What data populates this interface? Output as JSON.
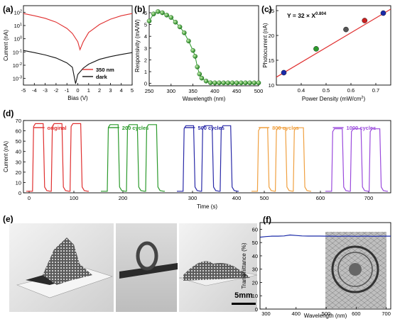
{
  "panels": {
    "a": {
      "label": "(a)"
    },
    "b": {
      "label": "(b)"
    },
    "c": {
      "label": "(c)"
    },
    "d": {
      "label": "(d)"
    },
    "e": {
      "label": "(e)",
      "scale_bar": "5mm"
    },
    "f": {
      "label": "(f)"
    }
  },
  "chart_data": [
    {
      "panel": "a",
      "type": "line",
      "xlabel": "Bias (V)",
      "ylabel": "Current (nA)",
      "log_scale_y": true,
      "xlim": [
        -5,
        5
      ],
      "ylim_exp": [
        -3.5,
        2.5
      ],
      "xticks": [
        "-5",
        "-4",
        "-3",
        "-2",
        "-1",
        "0",
        "1",
        "2",
        "3",
        "4",
        "5"
      ],
      "yticks": [
        "10^2",
        "10^1",
        "10^0",
        "10^-1",
        "10^-2",
        "10^-3"
      ],
      "legend_position": "bottom-right",
      "series": [
        {
          "name": "350 nm",
          "color": "#e03030",
          "x": [
            -5,
            -4,
            -3,
            -2,
            -1,
            -0.5,
            0,
            0.2,
            0.5,
            1,
            2,
            3,
            4,
            5
          ],
          "y": [
            80,
            55,
            35,
            18,
            6,
            2.5,
            0.6,
            0.15,
            0.6,
            3,
            12,
            30,
            55,
            80
          ]
        },
        {
          "name": "dark",
          "color": "#111111",
          "x": [
            -5,
            -4,
            -3,
            -2,
            -1,
            -0.5,
            -0.2,
            0,
            0.5,
            1,
            2,
            3,
            4,
            5
          ],
          "y": [
            0.13,
            0.09,
            0.06,
            0.035,
            0.015,
            0.007,
            0.0004,
            0.002,
            0.006,
            0.012,
            0.028,
            0.045,
            0.065,
            0.09
          ]
        }
      ]
    },
    {
      "panel": "b",
      "type": "line",
      "xlabel": "Wavelength (nm)",
      "ylabel": "Responsivity (mA/W)",
      "xlim": [
        250,
        500
      ],
      "ylim": [
        -0.2,
        6.6
      ],
      "xticks": [
        "250",
        "300",
        "350",
        "400",
        "450",
        "500"
      ],
      "yticks": [
        "0",
        "1",
        "2",
        "3",
        "4",
        "5",
        "6"
      ],
      "series": [
        {
          "name": "",
          "color": "#2c9a2c",
          "x": [
            250,
            260,
            270,
            280,
            290,
            300,
            310,
            320,
            330,
            340,
            350,
            355,
            360,
            365,
            370,
            380,
            390,
            400,
            410,
            420,
            430,
            440,
            450,
            460,
            470,
            480,
            490,
            500
          ],
          "y": [
            5.3,
            5.9,
            6.1,
            6.0,
            5.8,
            5.6,
            5.2,
            4.8,
            4.3,
            3.6,
            2.8,
            2.3,
            1.4,
            0.8,
            0.45,
            0.2,
            0.06,
            0.05,
            0.05,
            0.05,
            0.05,
            0.05,
            0.05,
            0.05,
            0.05,
            0.05,
            0.05,
            0.05
          ]
        }
      ]
    },
    {
      "panel": "c",
      "type": "scatter",
      "xlabel": "Power Density (mW/cm²)",
      "ylabel": "Photocurrent (nA)",
      "annotation": "Y = 32 × X^0.804",
      "xlim": [
        0.3,
        0.76
      ],
      "ylim": [
        10,
        26
      ],
      "xticks": [
        "0.4",
        "0.5",
        "0.6",
        "0.7"
      ],
      "yticks": [
        "10",
        "15",
        "20",
        "25"
      ],
      "points": [
        {
          "x": 0.33,
          "y": 12.5,
          "color": "#1a2aa8"
        },
        {
          "x": 0.46,
          "y": 17.3,
          "color": "#2c9a2c"
        },
        {
          "x": 0.58,
          "y": 21.2,
          "color": "#555555"
        },
        {
          "x": 0.655,
          "y": 23.0,
          "color": "#c82020"
        },
        {
          "x": 0.73,
          "y": 24.5,
          "color": "#1a2aa8"
        }
      ],
      "fit": {
        "x": [
          0.3,
          0.76
        ],
        "y": [
          11.6,
          25.3
        ],
        "color": "#e03030"
      }
    },
    {
      "panel": "d",
      "type": "line",
      "xlabel": "Time (s)",
      "ylabel": "Current (nA)",
      "ylim": [
        0,
        70
      ],
      "yticks": [
        "0",
        "10",
        "20",
        "30",
        "40",
        "50",
        "60",
        "70"
      ],
      "series": [
        {
          "name": "original",
          "color": "#e03030",
          "x_ticks": [
            "0",
            "100"
          ],
          "on": 67
        },
        {
          "name": "200 cycles",
          "color": "#2c9a2c",
          "x_ticks": [
            "200"
          ],
          "on": 66
        },
        {
          "name": "500 cycles",
          "color": "#2a2aa8",
          "x_ticks": [
            "300",
            "400"
          ],
          "on": 65
        },
        {
          "name": "800 cycles",
          "color": "#f0a040",
          "x_ticks": [
            "500"
          ],
          "on": 63
        },
        {
          "name": "1000 cycles",
          "color": "#9a4adc",
          "x_ticks": [
            "600",
            "700"
          ],
          "on": 62
        }
      ]
    },
    {
      "panel": "f",
      "type": "line",
      "xlabel": "Wavelength (nm)",
      "ylabel": "Transmittance (%)",
      "xlim": [
        280,
        715
      ],
      "ylim": [
        0,
        65
      ],
      "xticks": [
        "300",
        "400",
        "500",
        "600",
        "700"
      ],
      "yticks": [
        "0",
        "10",
        "20",
        "30",
        "40",
        "50",
        "60"
      ],
      "series": [
        {
          "name": "",
          "color": "#1a2aa8",
          "x": [
            280,
            300,
            320,
            340,
            360,
            380,
            400,
            420,
            440,
            460,
            480,
            500,
            520,
            540,
            560,
            580,
            600,
            620,
            640,
            660,
            680,
            700,
            715
          ],
          "y": [
            54,
            54.5,
            54.8,
            54.8,
            55,
            55.7,
            55.3,
            55,
            54.9,
            54.9,
            54.9,
            54.8,
            54.8,
            54.7,
            54.8,
            54.8,
            54.7,
            54.8,
            54.8,
            54.7,
            54.8,
            54.8,
            54.8
          ]
        }
      ]
    }
  ]
}
